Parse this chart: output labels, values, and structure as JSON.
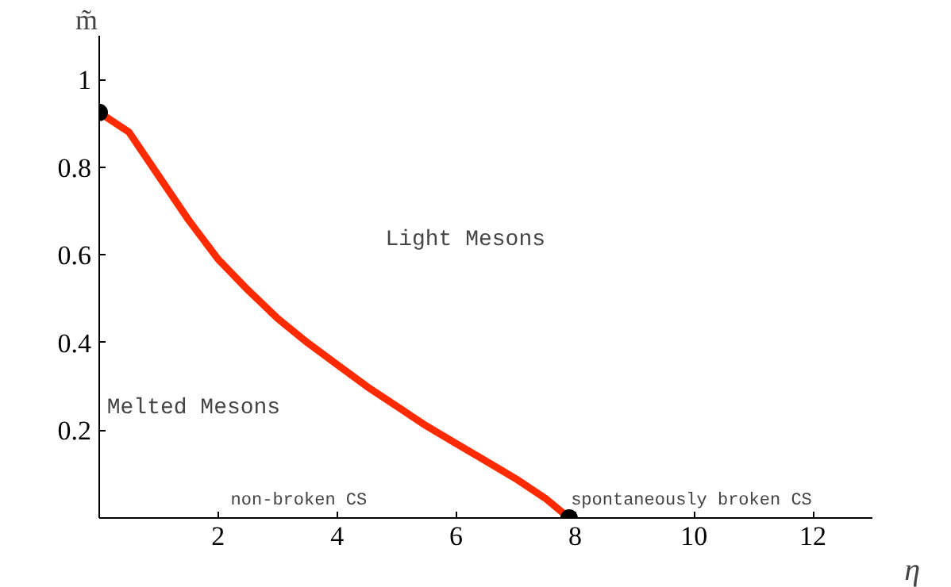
{
  "chart_data": {
    "type": "line",
    "xlabel": "η",
    "ylabel": "m̃",
    "annotations": [
      "Light Mesons",
      "Melted Mesons",
      "non-broken CS",
      "spontaneously broken CS"
    ],
    "xlim": [
      0,
      13
    ],
    "ylim": [
      0,
      1.1
    ],
    "xticks": [
      2,
      4,
      6,
      8,
      10,
      12
    ],
    "yticks": [
      0.2,
      0.4,
      0.6,
      0.8,
      1
    ],
    "grid": false,
    "series": [
      {
        "color": "#ff2a00",
        "x": [
          0,
          0.5,
          1,
          1.5,
          2,
          2.5,
          3,
          3.5,
          4,
          4.5,
          5,
          5.5,
          6,
          6.5,
          7,
          7.5,
          7.9
        ],
        "values": [
          0.925,
          0.88,
          0.78,
          0.68,
          0.59,
          0.52,
          0.455,
          0.4,
          0.35,
          0.3,
          0.255,
          0.21,
          0.17,
          0.13,
          0.09,
          0.045,
          0
        ]
      },
      {
        "type": "scatter",
        "color": "#000000",
        "marker": "circle",
        "x": [
          0,
          7.9
        ],
        "values": [
          0.925,
          0
        ]
      }
    ]
  }
}
